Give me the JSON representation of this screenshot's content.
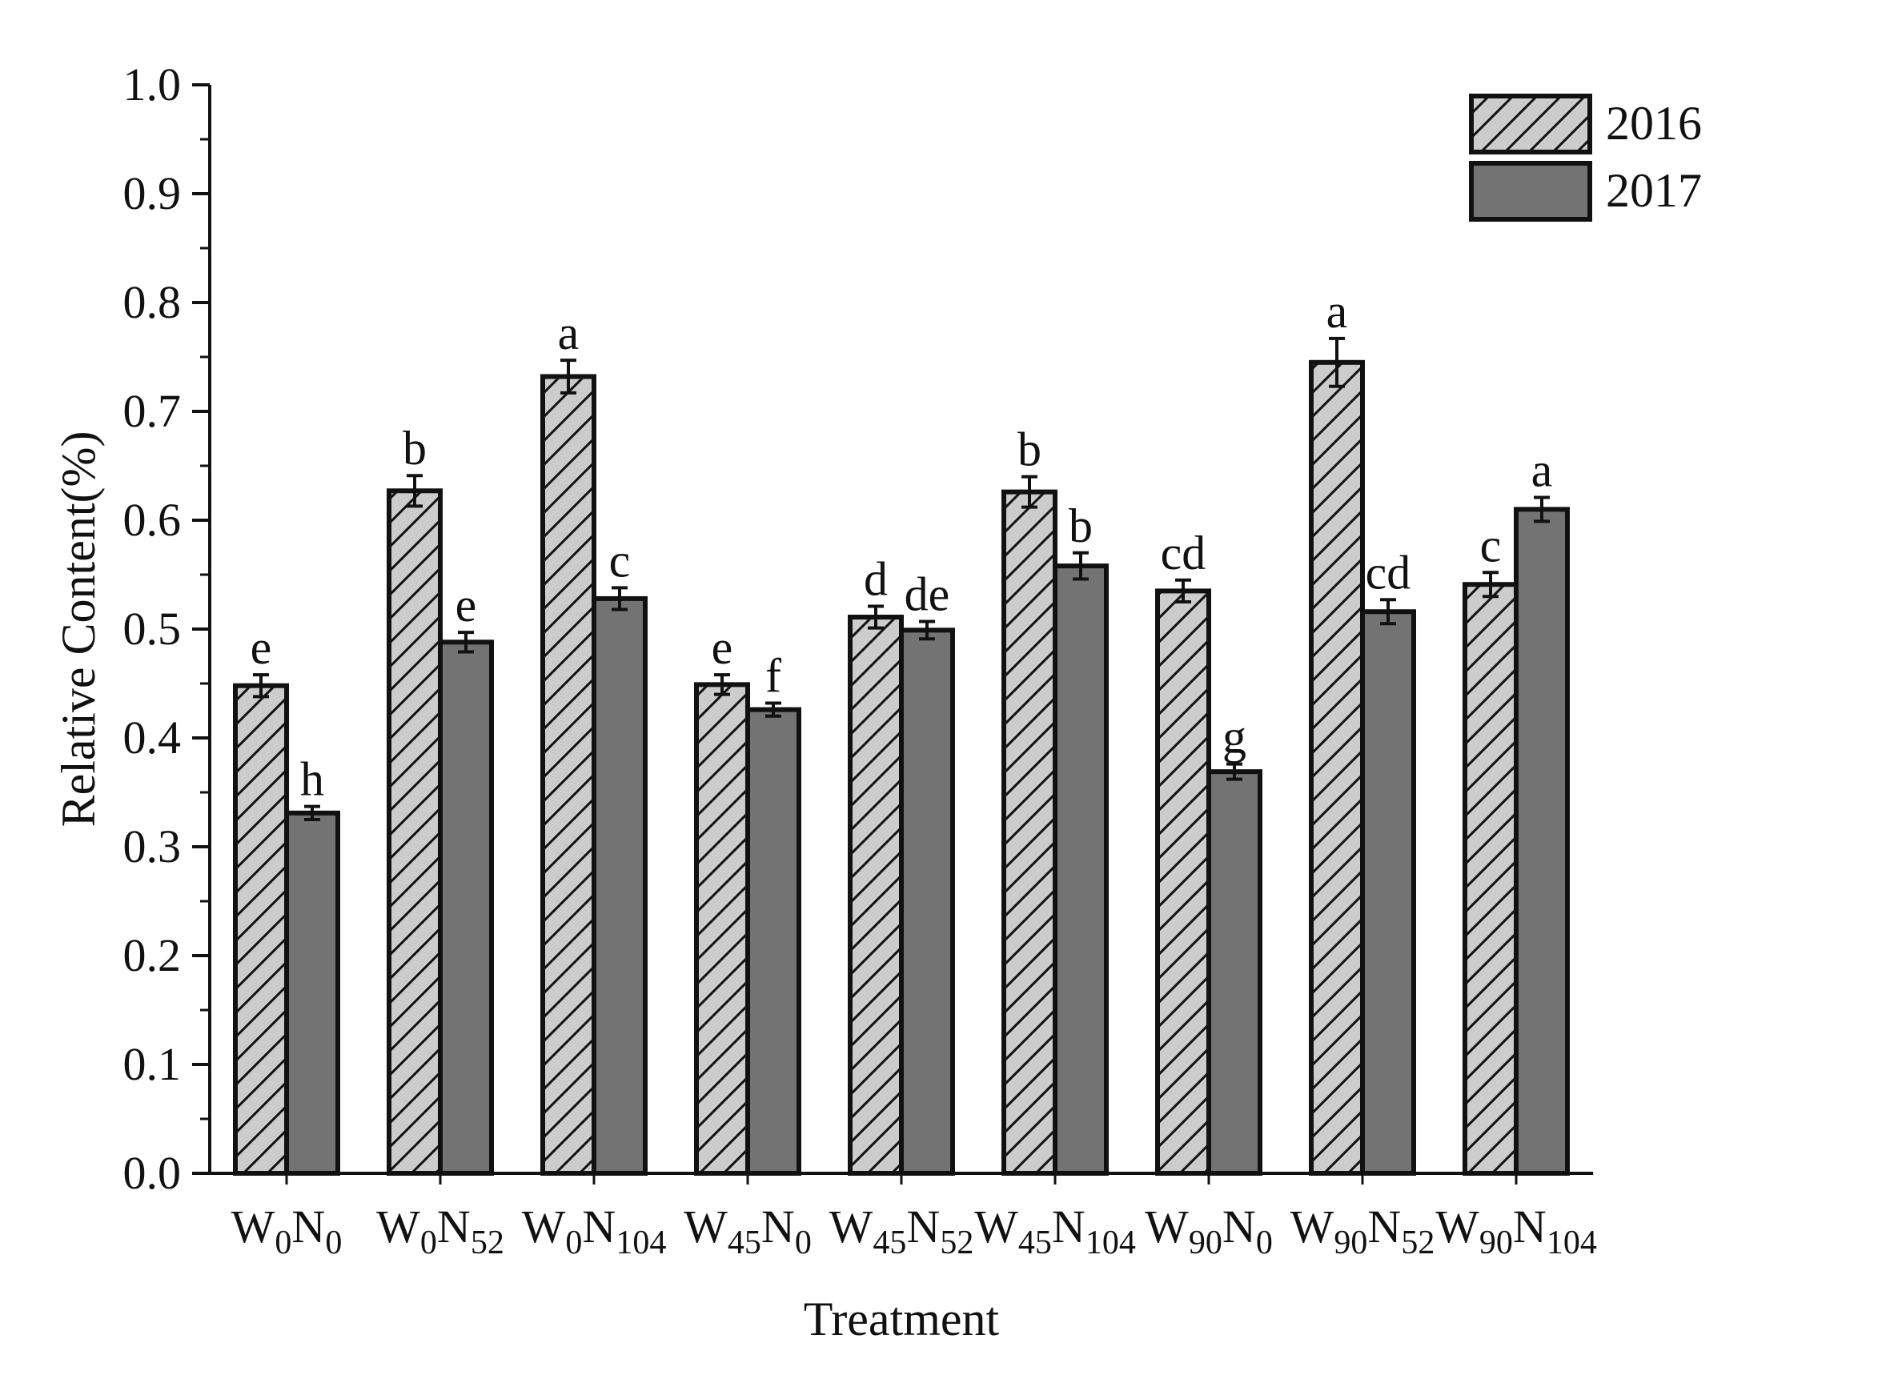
{
  "chart_data": {
    "type": "bar",
    "xlabel": "Treatment",
    "ylabel": "Relative Content(%)",
    "ylim": [
      0.0,
      1.0
    ],
    "y_ticks": [
      "0.0",
      "0.1",
      "0.2",
      "0.3",
      "0.4",
      "0.5",
      "0.6",
      "0.7",
      "0.8",
      "0.9",
      "1.0"
    ],
    "legend_position": "top-right",
    "categories": [
      {
        "w": "W",
        "w_sub": "0",
        "n": "N",
        "n_sub": "0"
      },
      {
        "w": "W",
        "w_sub": "0",
        "n": "N",
        "n_sub": "52"
      },
      {
        "w": "W",
        "w_sub": "0",
        "n": "N",
        "n_sub": "104"
      },
      {
        "w": "W",
        "w_sub": "45",
        "n": "N",
        "n_sub": "0"
      },
      {
        "w": "W",
        "w_sub": "45",
        "n": "N",
        "n_sub": "52"
      },
      {
        "w": "W",
        "w_sub": "45",
        "n": "N",
        "n_sub": "104"
      },
      {
        "w": "W",
        "w_sub": "90",
        "n": "N",
        "n_sub": "0"
      },
      {
        "w": "W",
        "w_sub": "90",
        "n": "N",
        "n_sub": "52"
      },
      {
        "w": "W",
        "w_sub": "90",
        "n": "N",
        "n_sub": "104"
      }
    ],
    "series": [
      {
        "name": "2016",
        "pattern": "hatched",
        "fill": "#cccccc",
        "values": [
          0.448,
          0.627,
          0.732,
          0.449,
          0.511,
          0.626,
          0.535,
          0.745,
          0.541
        ],
        "errors": [
          0.01,
          0.014,
          0.015,
          0.009,
          0.01,
          0.014,
          0.01,
          0.022,
          0.011
        ],
        "labels": [
          "e",
          "b",
          "a",
          "e",
          "d",
          "b",
          "cd",
          "a",
          "c"
        ]
      },
      {
        "name": "2017",
        "pattern": "solid",
        "fill": "#737373",
        "values": [
          0.331,
          0.488,
          0.528,
          0.426,
          0.499,
          0.558,
          0.369,
          0.516,
          0.61
        ],
        "errors": [
          0.006,
          0.009,
          0.01,
          0.006,
          0.008,
          0.012,
          0.007,
          0.011,
          0.011
        ],
        "labels": [
          "h",
          "e",
          "c",
          "f",
          "de",
          "b",
          "g",
          "cd",
          "a"
        ]
      }
    ]
  },
  "colors": {
    "axis": "#111111",
    "hatch_fill": "#cccccc",
    "solid_fill": "#737373",
    "background": "#ffffff"
  }
}
